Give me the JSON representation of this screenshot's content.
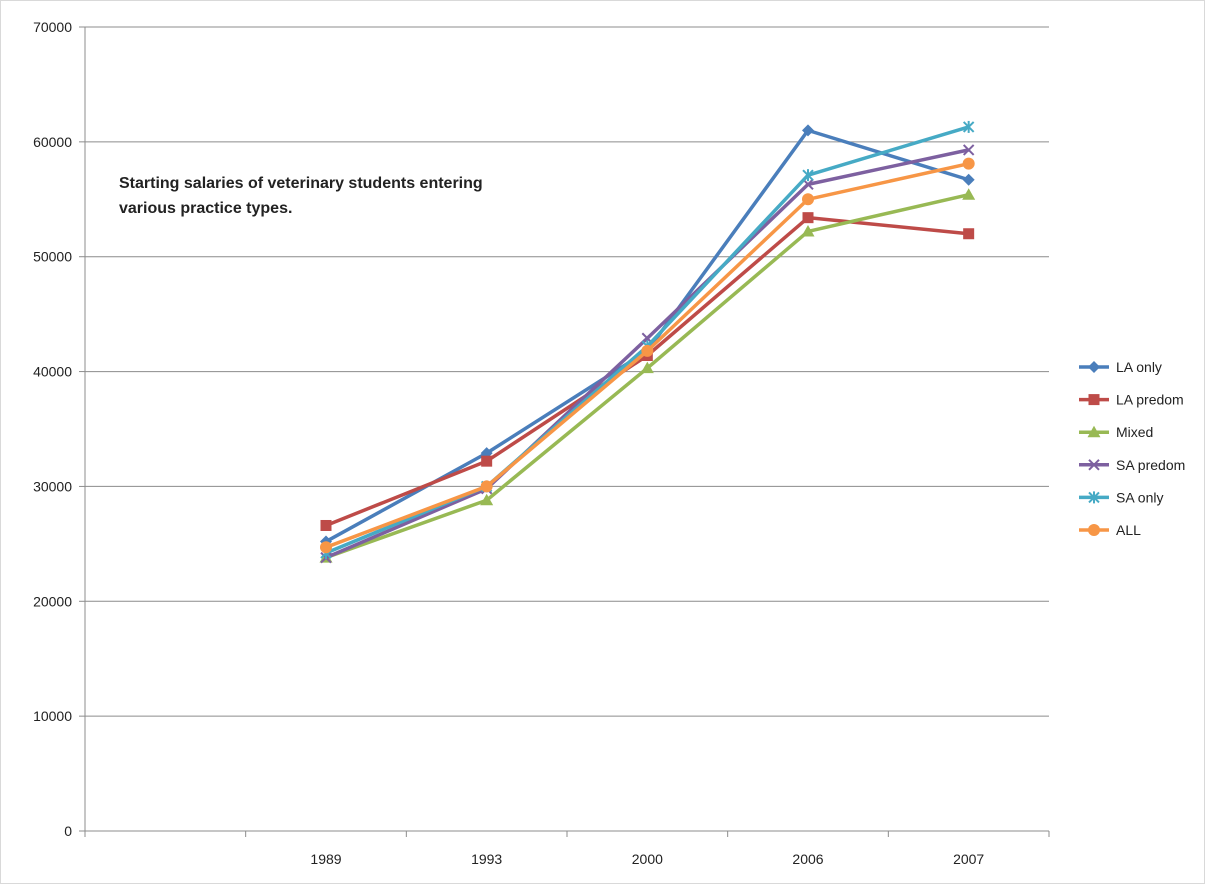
{
  "chart_data": {
    "type": "line",
    "title": "",
    "annotation": [
      "Starting salaries of veterinary students entering",
      "various practice types."
    ],
    "categories": [
      "1989",
      "1993",
      "2000",
      "2006",
      "2007"
    ],
    "ylim": [
      0,
      70000
    ],
    "yticks": [
      0,
      10000,
      20000,
      30000,
      40000,
      50000,
      60000,
      70000
    ],
    "grid": "horizontal",
    "legend": "right",
    "series": [
      {
        "name": "LA only",
        "color": "#4a7ebb",
        "marker": "diamond",
        "values": [
          25200,
          32900,
          41800,
          61000,
          56700
        ]
      },
      {
        "name": "LA predom",
        "color": "#be4b48",
        "marker": "square",
        "values": [
          26600,
          32200,
          41400,
          53400,
          52000
        ]
      },
      {
        "name": "Mixed",
        "color": "#98b954",
        "marker": "triangle",
        "values": [
          23800,
          28800,
          40300,
          52200,
          55400
        ]
      },
      {
        "name": "SA predom",
        "color": "#7d60a0",
        "marker": "x",
        "values": [
          23800,
          29800,
          42900,
          56300,
          59300
        ]
      },
      {
        "name": "SA only",
        "color": "#46aac5",
        "marker": "star",
        "values": [
          24200,
          30000,
          42200,
          57100,
          61300
        ]
      },
      {
        "name": "ALL",
        "color": "#f79646",
        "marker": "circle",
        "values": [
          24700,
          30000,
          41800,
          55000,
          58100
        ]
      }
    ]
  }
}
